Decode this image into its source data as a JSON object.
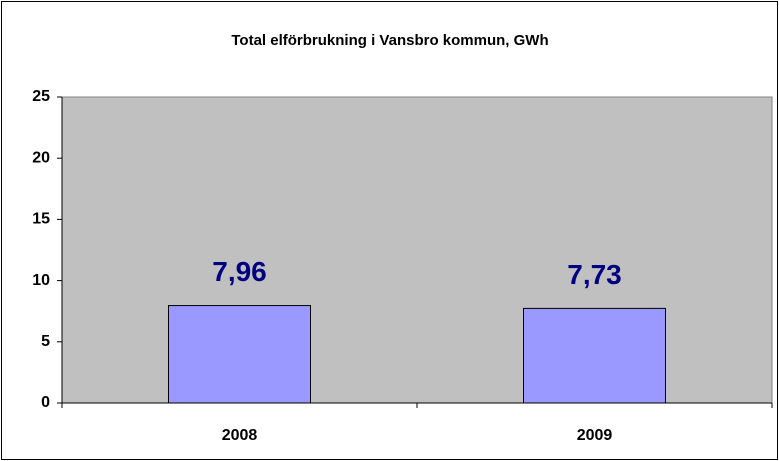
{
  "chart_data": {
    "type": "bar",
    "title": "Total elförbrukning i Vansbro kommun, GWh",
    "categories": [
      "2008",
      "2009"
    ],
    "values": [
      7.96,
      7.73
    ],
    "value_labels": [
      "7,96",
      "7,73"
    ],
    "color": "#9999ff",
    "label_color": "#000080",
    "plot_background": "#c0c0c0",
    "ylim": [
      0,
      25
    ],
    "yticks": [
      0,
      5,
      10,
      15,
      20,
      25
    ],
    "grid": false
  }
}
